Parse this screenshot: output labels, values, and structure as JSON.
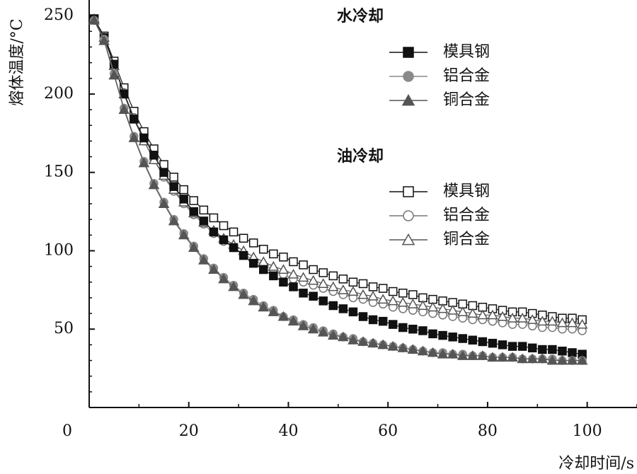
{
  "chart_data": {
    "type": "line",
    "xlabel": "冷却时间/s",
    "ylabel": "熔体温度/°C",
    "xlim": [
      0,
      110
    ],
    "ylim": [
      0,
      260
    ],
    "xticks": [
      0,
      20,
      40,
      60,
      80,
      100
    ],
    "yticks": [
      50,
      100,
      150,
      200,
      250
    ],
    "grid": false,
    "legend_groups": [
      {
        "title": "水冷却",
        "entries": [
          "模具钢",
          "铝合金",
          "铜合金"
        ]
      },
      {
        "title": "油冷却",
        "entries": [
          "模具钢",
          "铝合金",
          "铜合金"
        ]
      }
    ],
    "x": [
      1,
      3,
      5,
      7,
      9,
      11,
      13,
      15,
      17,
      19,
      21,
      23,
      25,
      27,
      29,
      31,
      33,
      35,
      37,
      39,
      41,
      43,
      45,
      47,
      49,
      51,
      53,
      55,
      57,
      59,
      61,
      63,
      65,
      67,
      69,
      71,
      73,
      75,
      77,
      79,
      81,
      83,
      85,
      87,
      89,
      91,
      93,
      95,
      97,
      99
    ],
    "series": [
      {
        "group": "水冷却",
        "name": "模具钢",
        "marker": "filled-square",
        "values": [
          248,
          236,
          219,
          200,
          184,
          172,
          161,
          150,
          141,
          133,
          125,
          119,
          112,
          107,
          102,
          97,
          92,
          88,
          84,
          80,
          77,
          73,
          71,
          68,
          65,
          63,
          61,
          58,
          56,
          55,
          53,
          51,
          50,
          49,
          47,
          46,
          45,
          44,
          43,
          42,
          41,
          40,
          39,
          39,
          38,
          37,
          37,
          36,
          35,
          34
        ]
      },
      {
        "group": "水冷却",
        "name": "铝合金",
        "marker": "filled-circle",
        "values": [
          247,
          235,
          213,
          191,
          173,
          157,
          143,
          131,
          120,
          111,
          103,
          95,
          89,
          83,
          78,
          73,
          69,
          65,
          62,
          58,
          56,
          53,
          51,
          49,
          47,
          45,
          44,
          42,
          41,
          40,
          39,
          38,
          37,
          36,
          35,
          35,
          34,
          34,
          33,
          33,
          32,
          32,
          32,
          31,
          31,
          31,
          31,
          30,
          30,
          30
        ]
      },
      {
        "group": "水冷却",
        "name": "铜合金",
        "marker": "filled-triangle",
        "values": [
          247,
          234,
          212,
          190,
          172,
          156,
          142,
          130,
          119,
          110,
          102,
          94,
          88,
          82,
          77,
          72,
          68,
          64,
          61,
          58,
          55,
          52,
          50,
          48,
          46,
          45,
          43,
          42,
          41,
          40,
          39,
          38,
          37,
          36,
          35,
          34,
          34,
          33,
          33,
          33,
          32,
          32,
          32,
          31,
          31,
          31,
          30,
          30,
          30,
          30
        ]
      },
      {
        "group": "油冷却",
        "name": "模具钢",
        "marker": "open-square",
        "values": [
          248,
          237,
          221,
          204,
          189,
          176,
          165,
          155,
          147,
          139,
          132,
          126,
          121,
          116,
          112,
          108,
          105,
          101,
          98,
          96,
          93,
          91,
          88,
          86,
          84,
          82,
          80,
          79,
          77,
          76,
          74,
          73,
          72,
          70,
          69,
          68,
          67,
          66,
          65,
          64,
          63,
          62,
          61,
          61,
          60,
          59,
          58,
          57,
          57,
          56
        ]
      },
      {
        "group": "油冷却",
        "name": "铝合金",
        "marker": "open-circle",
        "values": [
          248,
          236,
          219,
          201,
          185,
          170,
          158,
          147,
          138,
          130,
          123,
          117,
          111,
          106,
          102,
          98,
          94,
          91,
          88,
          85,
          82,
          80,
          78,
          76,
          74,
          72,
          70,
          69,
          67,
          66,
          64,
          63,
          62,
          61,
          60,
          59,
          58,
          57,
          56,
          56,
          55,
          54,
          53,
          53,
          52,
          51,
          51,
          50,
          50,
          49
        ]
      },
      {
        "group": "油冷却",
        "name": "铜合金",
        "marker": "open-triangle",
        "values": [
          248,
          236,
          218,
          200,
          184,
          170,
          158,
          148,
          139,
          131,
          124,
          118,
          113,
          108,
          104,
          100,
          96,
          93,
          90,
          88,
          85,
          83,
          81,
          79,
          77,
          75,
          74,
          72,
          71,
          69,
          68,
          67,
          66,
          65,
          64,
          63,
          62,
          61,
          60,
          59,
          59,
          58,
          57,
          57,
          56,
          55,
          55,
          54,
          54,
          53
        ]
      }
    ]
  }
}
